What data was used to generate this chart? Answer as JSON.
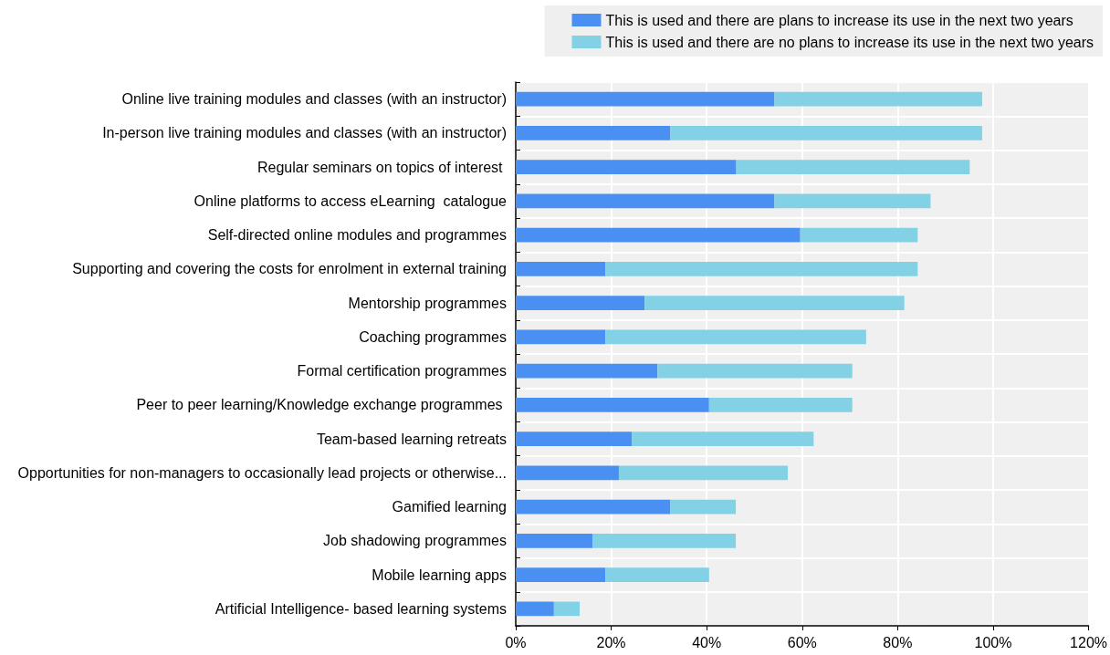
{
  "chart_data": {
    "type": "bar",
    "orientation": "horizontal",
    "stacked": true,
    "categories": [
      "Online live training modules and classes (with an instructor)",
      "In-person live training modules and classes (with an instructor)",
      "Regular seminars on topics of interest ",
      "Online platforms to access eLearning  catalogue",
      "Self-directed online modules and programmes",
      "Supporting and covering the costs for enrolment in external training",
      "Mentorship programmes",
      "Coaching programmes",
      "Formal certification programmes",
      "Peer to peer learning/Knowledge exchange programmes ",
      "Team-based learning retreats",
      "Opportunities for non-managers to occasionally lead projects or otherwise...",
      "Gamified learning",
      "Job shadowing programmes",
      "Mobile learning apps",
      "Artificial Intelligence- based learning systems"
    ],
    "series": [
      {
        "name": "This is used and there are plans to increase its use in the next two years",
        "color": "#4a90f2",
        "values": [
          54.2,
          32.4,
          46.2,
          54.2,
          59.6,
          18.8,
          27.0,
          18.8,
          29.7,
          40.5,
          24.3,
          21.6,
          32.4,
          16.1,
          18.8,
          8.0
        ]
      },
      {
        "name": "This is used and there are no plans to increase its use in the next two years",
        "color": "#83d1e4",
        "values": [
          43.5,
          65.3,
          48.9,
          32.7,
          24.6,
          65.4,
          54.4,
          54.6,
          40.8,
          30.0,
          38.1,
          35.4,
          13.7,
          30.0,
          21.7,
          5.4
        ]
      }
    ],
    "xlim": [
      0,
      120
    ],
    "xticks": [
      {
        "value": 0,
        "label": "0%"
      },
      {
        "value": 20,
        "label": "20%"
      },
      {
        "value": 40,
        "label": "40%"
      },
      {
        "value": 60,
        "label": "60%"
      },
      {
        "value": 80,
        "label": "80%"
      },
      {
        "value": 100,
        "label": "100%"
      },
      {
        "value": 120,
        "label": "120%"
      }
    ],
    "grid": true,
    "legend": "top right"
  }
}
